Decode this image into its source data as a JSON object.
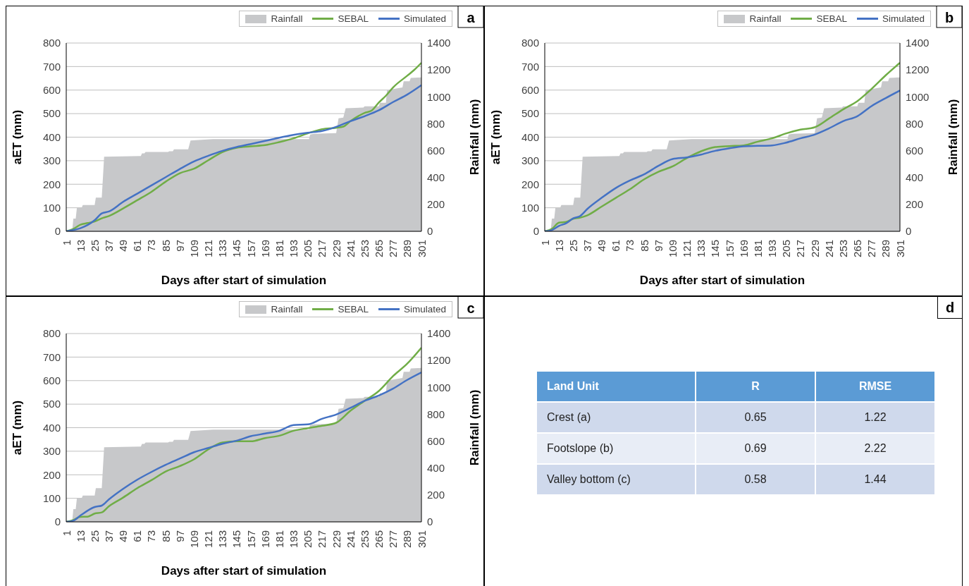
{
  "chart_data": [
    {
      "type": "line",
      "annotations": [
        "a"
      ],
      "xlabel": "Days after start of simulation",
      "ylabel": "aET (mm)",
      "y2label": "Rainfall (mm)",
      "xlim": [
        1,
        301
      ],
      "xticks": [
        1,
        13,
        25,
        37,
        49,
        61,
        73,
        85,
        97,
        109,
        121,
        133,
        145,
        157,
        169,
        181,
        193,
        205,
        217,
        229,
        241,
        253,
        265,
        277,
        289,
        301
      ],
      "ylim": [
        0,
        800
      ],
      "yticks": [
        0,
        100,
        200,
        300,
        400,
        500,
        600,
        700,
        800
      ],
      "y2lim": [
        0,
        1400
      ],
      "y2ticks": [
        0,
        200,
        400,
        600,
        800,
        1000,
        1200,
        1400
      ],
      "grid": "y",
      "legend": "top right",
      "series": [
        {
          "name": "Rainfall",
          "type": "area",
          "axis": "y2",
          "color": "#c7c8ca",
          "x": [
            1,
            6,
            7,
            9,
            10,
            14,
            15,
            25,
            26,
            31,
            33,
            64,
            65,
            67,
            68,
            87,
            88,
            91,
            92,
            104,
            106,
            125,
            206,
            207,
            210,
            229,
            231,
            235,
            237,
            252,
            253,
            265,
            266,
            271,
            272,
            285,
            286,
            291,
            292,
            301
          ],
          "values": [
            0,
            0,
            95,
            95,
            175,
            175,
            195,
            195,
            250,
            250,
            555,
            560,
            580,
            580,
            590,
            590,
            595,
            595,
            610,
            610,
            675,
            685,
            685,
            720,
            725,
            730,
            840,
            845,
            915,
            920,
            930,
            930,
            955,
            955,
            1050,
            1070,
            1115,
            1115,
            1140,
            1145
          ]
        },
        {
          "name": "SEBAL",
          "color": "#70ad47",
          "x": [
            1,
            7,
            13,
            19,
            25,
            31,
            37,
            49,
            61,
            73,
            85,
            97,
            109,
            121,
            133,
            145,
            157,
            169,
            181,
            193,
            205,
            217,
            229,
            235,
            241,
            253,
            259,
            265,
            271,
            277,
            289,
            295,
            301
          ],
          "values": [
            0,
            10,
            28,
            35,
            42,
            55,
            65,
            97,
            132,
            168,
            211,
            247,
            266,
            302,
            337,
            355,
            361,
            366,
            379,
            395,
            416,
            434,
            440,
            445,
            468,
            503,
            513,
            547,
            576,
            611,
            661,
            686,
            716
          ]
        },
        {
          "name": "Simulated",
          "color": "#4472c4",
          "x": [
            1,
            7,
            13,
            25,
            31,
            37,
            49,
            61,
            73,
            85,
            97,
            109,
            121,
            133,
            145,
            157,
            169,
            181,
            193,
            205,
            217,
            229,
            241,
            253,
            265,
            277,
            289,
            301
          ],
          "values": [
            0,
            5,
            13,
            47,
            76,
            84,
            125,
            160,
            195,
            230,
            265,
            297,
            321,
            342,
            358,
            371,
            384,
            398,
            410,
            419,
            426,
            444,
            468,
            489,
            514,
            549,
            581,
            621
          ]
        }
      ]
    },
    {
      "type": "line",
      "annotations": [
        "b"
      ],
      "xlabel": "Days after start of simulation",
      "ylabel": "aET (mm)",
      "y2label": "Rainfall (mm)",
      "xlim": [
        1,
        301
      ],
      "xticks": [
        1,
        13,
        25,
        37,
        49,
        61,
        73,
        85,
        97,
        109,
        121,
        133,
        145,
        157,
        169,
        181,
        193,
        205,
        217,
        229,
        241,
        253,
        265,
        277,
        289,
        301
      ],
      "ylim": [
        0,
        800
      ],
      "yticks": [
        0,
        100,
        200,
        300,
        400,
        500,
        600,
        700,
        800
      ],
      "y2lim": [
        0,
        1400
      ],
      "y2ticks": [
        0,
        200,
        400,
        600,
        800,
        1000,
        1200,
        1400
      ],
      "grid": "y",
      "legend": "top right",
      "series": [
        {
          "name": "Rainfall",
          "type": "area",
          "axis": "y2",
          "color": "#c7c8ca",
          "x": [
            1,
            6,
            7,
            9,
            10,
            14,
            15,
            25,
            26,
            31,
            33,
            64,
            65,
            67,
            68,
            87,
            88,
            91,
            92,
            104,
            106,
            125,
            206,
            207,
            210,
            229,
            231,
            235,
            237,
            252,
            253,
            265,
            266,
            271,
            272,
            285,
            286,
            291,
            292,
            301
          ],
          "values": [
            0,
            0,
            95,
            95,
            175,
            175,
            195,
            195,
            250,
            250,
            555,
            560,
            580,
            580,
            590,
            590,
            595,
            595,
            610,
            610,
            675,
            685,
            685,
            720,
            725,
            730,
            840,
            845,
            915,
            920,
            930,
            930,
            955,
            955,
            1050,
            1070,
            1115,
            1115,
            1140,
            1145
          ]
        },
        {
          "name": "SEBAL",
          "color": "#70ad47",
          "x": [
            1,
            7,
            13,
            19,
            25,
            31,
            37,
            49,
            61,
            73,
            85,
            97,
            109,
            121,
            133,
            145,
            157,
            169,
            181,
            193,
            205,
            217,
            229,
            241,
            253,
            265,
            277,
            289,
            301
          ],
          "values": [
            0,
            10,
            37,
            40,
            53,
            58,
            68,
            105,
            142,
            179,
            221,
            253,
            276,
            311,
            340,
            358,
            362,
            365,
            381,
            395,
            416,
            432,
            442,
            479,
            518,
            553,
            605,
            663,
            716
          ]
        },
        {
          "name": "Simulated",
          "color": "#4472c4",
          "x": [
            1,
            7,
            13,
            19,
            25,
            31,
            37,
            49,
            61,
            73,
            85,
            97,
            109,
            121,
            133,
            145,
            157,
            169,
            181,
            193,
            205,
            217,
            229,
            241,
            253,
            265,
            277,
            289,
            301
          ],
          "values": [
            0,
            5,
            23,
            34,
            55,
            65,
            95,
            142,
            184,
            216,
            242,
            278,
            307,
            314,
            326,
            342,
            353,
            361,
            363,
            365,
            377,
            395,
            411,
            437,
            468,
            489,
            532,
            566,
            598
          ]
        }
      ]
    },
    {
      "type": "line",
      "annotations": [
        "c"
      ],
      "xlabel": "Days after start of simulation",
      "ylabel": "aET (mm)",
      "y2label": "Rainfall (mm)",
      "xlim": [
        1,
        301
      ],
      "xticks": [
        1,
        13,
        25,
        37,
        49,
        61,
        73,
        85,
        97,
        109,
        121,
        133,
        145,
        157,
        169,
        181,
        193,
        205,
        217,
        229,
        241,
        253,
        265,
        277,
        289,
        301
      ],
      "ylim": [
        0,
        800
      ],
      "yticks": [
        0,
        100,
        200,
        300,
        400,
        500,
        600,
        700,
        800
      ],
      "y2lim": [
        0,
        1400
      ],
      "y2ticks": [
        0,
        200,
        400,
        600,
        800,
        1000,
        1200,
        1400
      ],
      "grid": "y",
      "legend": "top right",
      "series": [
        {
          "name": "Rainfall",
          "type": "area",
          "axis": "y2",
          "color": "#c7c8ca",
          "x": [
            1,
            6,
            7,
            9,
            10,
            14,
            15,
            25,
            26,
            31,
            33,
            64,
            65,
            67,
            68,
            87,
            88,
            91,
            92,
            104,
            106,
            125,
            206,
            207,
            210,
            229,
            231,
            235,
            237,
            252,
            253,
            265,
            266,
            271,
            272,
            285,
            286,
            291,
            292,
            301
          ],
          "values": [
            0,
            0,
            95,
            95,
            175,
            175,
            195,
            195,
            250,
            250,
            555,
            560,
            580,
            580,
            590,
            590,
            595,
            595,
            610,
            610,
            675,
            685,
            685,
            720,
            725,
            730,
            840,
            845,
            915,
            920,
            930,
            930,
            955,
            955,
            1050,
            1070,
            1115,
            1115,
            1140,
            1145
          ]
        },
        {
          "name": "SEBAL",
          "color": "#70ad47",
          "x": [
            1,
            7,
            13,
            19,
            25,
            31,
            37,
            49,
            61,
            73,
            85,
            97,
            109,
            121,
            133,
            145,
            157,
            169,
            181,
            193,
            205,
            217,
            229,
            241,
            253,
            265,
            277,
            289,
            301
          ],
          "values": [
            0,
            8,
            21,
            22,
            35,
            40,
            66,
            103,
            143,
            177,
            214,
            237,
            266,
            308,
            337,
            342,
            342,
            356,
            366,
            387,
            398,
            408,
            421,
            472,
            514,
            556,
            619,
            672,
            740
          ]
        },
        {
          "name": "Simulated",
          "color": "#4472c4",
          "x": [
            1,
            7,
            13,
            25,
            31,
            37,
            49,
            61,
            73,
            85,
            97,
            109,
            121,
            133,
            145,
            157,
            169,
            181,
            193,
            205,
            217,
            229,
            241,
            253,
            265,
            277,
            289,
            301
          ],
          "values": [
            0,
            5,
            27,
            63,
            69,
            95,
            140,
            179,
            212,
            242,
            269,
            296,
            314,
            332,
            345,
            364,
            375,
            387,
            411,
            414,
            438,
            456,
            484,
            514,
            537,
            566,
            603,
            635
          ]
        }
      ]
    },
    {
      "type": "other",
      "title": "d",
      "annotations": [
        "Land Unit",
        "R",
        "RMSE",
        "Crest (a)",
        "0.65",
        "1.22",
        "Footslope (b)",
        "0.69",
        "2.22",
        "Valley bottom (c)",
        "0.58",
        "1.44"
      ]
    }
  ]
}
